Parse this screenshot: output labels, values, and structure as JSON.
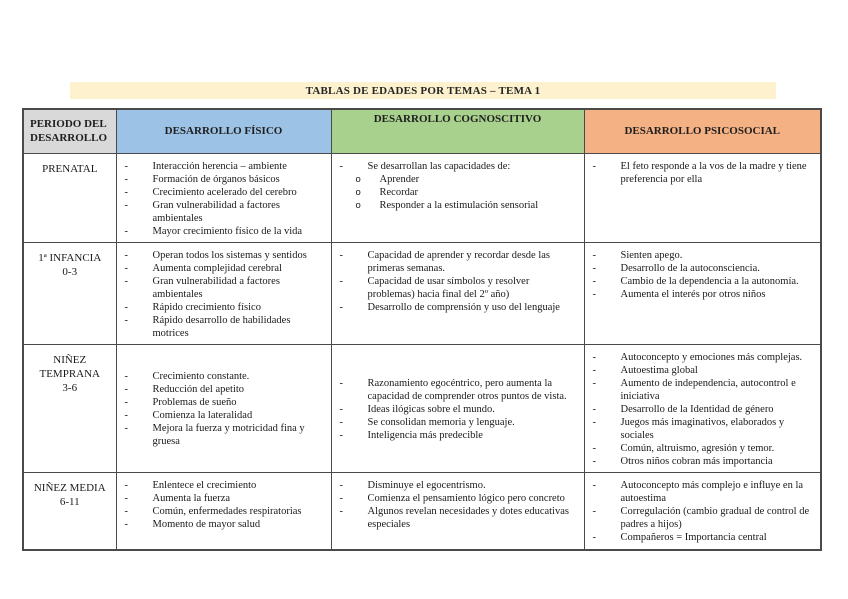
{
  "title": "TABLAS DE EDADES POR TEMAS – TEMA 1",
  "table": {
    "headers": {
      "periodo": "PERIODO DEL DESARROLLO",
      "fisico": "DESARROLLO FÍSICO",
      "cognoscitivo": "DESARROLLO COGNOSCITIVO",
      "psicosocial": "DESARROLLO PSICOSOCIAL"
    },
    "rows": [
      {
        "period": "PRENATAL",
        "age": "",
        "fisico": [
          {
            "text": "Interacción herencia – ambiente"
          },
          {
            "text": "Formación de órganos básicos"
          },
          {
            "text": "Crecimiento acelerado del cerebro"
          },
          {
            "text": "Gran vulnerabilidad a factores ambientales"
          },
          {
            "text": "Mayor crecimiento físico de la vida"
          }
        ],
        "cognoscitivo": [
          {
            "text": "Se desarrollan las capacidades de:",
            "subs": [
              "Aprender",
              "Recordar",
              "Responder a la estimulación sensorial"
            ]
          }
        ],
        "psicosocial": [
          {
            "text": "El feto responde a la vos de la madre y tiene preferencia por ella"
          }
        ]
      },
      {
        "period": "1ª INFANCIA",
        "age": "0-3",
        "fisico": [
          {
            "text": "Operan todos los sistemas y sentidos"
          },
          {
            "text": "Aumenta complejidad cerebral"
          },
          {
            "text": "Gran vulnerabilidad a factores ambientales"
          },
          {
            "text": "Rápido crecimiento físico"
          },
          {
            "text": "Rápido desarrollo de habilidades motrices"
          }
        ],
        "cognoscitivo": [
          {
            "text": "Capacidad de aprender y recordar desde las primeras semanas."
          },
          {
            "text": "Capacidad de usar símbolos y resolver problemas) hacia final del 2º año)"
          },
          {
            "text": "Desarrollo de comprensión y uso del lenguaje"
          }
        ],
        "psicosocial": [
          {
            "text": "Sienten apego."
          },
          {
            "text": "Desarrollo de la autoconsciencia."
          },
          {
            "text": "Cambio de la dependencia a la autonomía."
          },
          {
            "text": "Aumenta el interés por otros niños"
          }
        ]
      },
      {
        "period": "NIÑEZ TEMPRANA",
        "age": "3-6",
        "fisico": [
          {
            "text": "Crecimiento constante."
          },
          {
            "text": "Reducción del apetito"
          },
          {
            "text": "Problemas de sueño"
          },
          {
            "text": "Comienza la lateralidad"
          },
          {
            "text": "Mejora la fuerza y motricidad fina y gruesa"
          }
        ],
        "cognoscitivo": [
          {
            "text": "Razonamiento egocéntrico, pero aumenta la capacidad de comprender otros puntos de vista."
          },
          {
            "text": "Ideas ilógicas sobre el mundo."
          },
          {
            "text": "Se consolidan memoria y lenguaje."
          },
          {
            "text": "Inteligencia más predecible"
          }
        ],
        "psicosocial": [
          {
            "text": "Autoconcepto y emociones más complejas."
          },
          {
            "text": "Autoestima global"
          },
          {
            "text": "Aumento de independencia, autocontrol e iniciativa"
          },
          {
            "text": "Desarrollo de la Identidad de género"
          },
          {
            "text": "Juegos más imaginativos, elaborados y sociales"
          },
          {
            "text": "Común, altruismo, agresión y temor."
          },
          {
            "text": "Otros niños cobran más importancia"
          }
        ]
      },
      {
        "period": "NIÑEZ MEDIA",
        "age": "6-11",
        "fisico": [
          {
            "text": "Enlentece el crecimiento"
          },
          {
            "text": "Aumenta la fuerza"
          },
          {
            "text": "Común, enfermedades respiratorias"
          },
          {
            "text": "Momento de mayor salud"
          }
        ],
        "cognoscitivo": [
          {
            "text": "Disminuye el egocentrismo."
          },
          {
            "text": "Comienza el pensamiento lógico pero concreto"
          },
          {
            "text": "Algunos revelan necesidades y dotes educativas especiales"
          }
        ],
        "psicosocial": [
          {
            "text": "Autoconcepto más complejo e influye en la autoestima"
          },
          {
            "text": "Corregulación (cambio gradual de control de padres a hijos)"
          },
          {
            "text": "Compañeros = Importancia central"
          }
        ]
      }
    ]
  },
  "markers": {
    "dash": "-",
    "circle": "o"
  }
}
